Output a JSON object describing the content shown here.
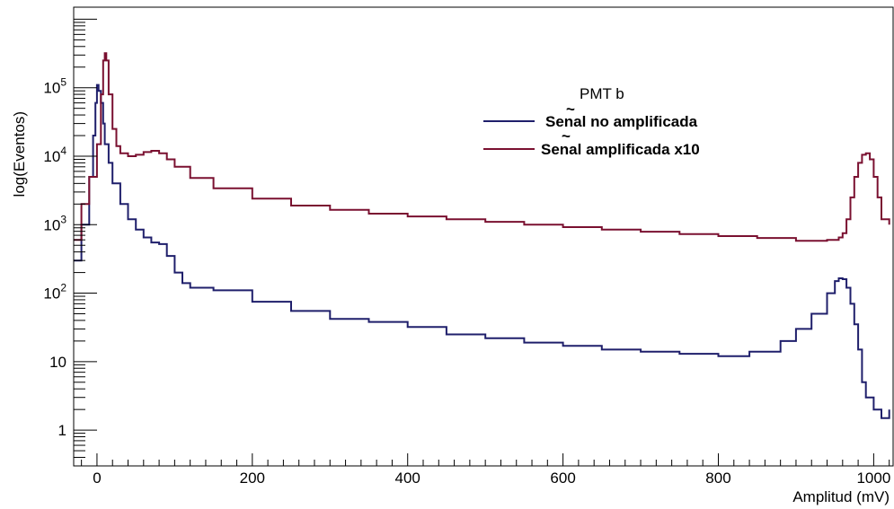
{
  "chart_data": {
    "type": "line",
    "title": "",
    "xlabel": "Amplitud (mV)",
    "ylabel": "log(Eventos)",
    "xlim": [
      -30,
      1025
    ],
    "ylim": [
      0.3,
      1500000
    ],
    "yscale": "log",
    "grid": false,
    "legend": {
      "title": "PMT b",
      "position": "top-right",
      "entries": [
        "Senal no amplificada",
        "Senal amplificada x10"
      ]
    },
    "x_ticks": [
      0,
      200,
      400,
      600,
      800,
      1000
    ],
    "x_tick_labels": [
      "0",
      "200",
      "400",
      "600",
      "800",
      "1000"
    ],
    "y_ticks": [
      1,
      10,
      100,
      1000,
      10000,
      100000
    ],
    "y_tick_labels": [
      "1",
      "10",
      "10^2",
      "10^3",
      "10^4",
      "10^5"
    ],
    "series": [
      {
        "name": "Senal no amplificada",
        "color": "#1f1f6b",
        "x": [
          -30,
          -20,
          -10,
          -5,
          -2,
          0,
          2,
          5,
          8,
          10,
          15,
          20,
          30,
          40,
          50,
          60,
          70,
          80,
          90,
          100,
          110,
          120,
          150,
          200,
          250,
          300,
          350,
          400,
          450,
          500,
          550,
          600,
          650,
          700,
          750,
          800,
          840,
          880,
          900,
          920,
          940,
          950,
          955,
          960,
          965,
          970,
          975,
          980,
          985,
          990,
          1000,
          1010,
          1020
        ],
        "y": [
          300,
          1000,
          5000,
          20000,
          60000,
          110000,
          90000,
          60000,
          30000,
          15000,
          8000,
          4000,
          2000,
          1200,
          850,
          650,
          550,
          520,
          350,
          200,
          140,
          120,
          110,
          75,
          55,
          42,
          38,
          32,
          25,
          22,
          19,
          17,
          15,
          14,
          13,
          12,
          14,
          20,
          30,
          50,
          100,
          150,
          165,
          160,
          120,
          70,
          35,
          15,
          5,
          3,
          2,
          1.5,
          2
        ]
      },
      {
        "name": "Senal amplificada x10",
        "color": "#7a1030",
        "x": [
          -30,
          -20,
          -10,
          0,
          5,
          8,
          10,
          12,
          15,
          20,
          25,
          30,
          40,
          50,
          60,
          70,
          80,
          90,
          100,
          120,
          150,
          200,
          250,
          300,
          350,
          400,
          450,
          500,
          550,
          600,
          650,
          700,
          750,
          800,
          850,
          900,
          940,
          955,
          960,
          965,
          970,
          975,
          980,
          985,
          990,
          995,
          1000,
          1005,
          1010,
          1020
        ],
        "y": [
          600,
          2000,
          5000,
          15000,
          80000,
          250000,
          320000,
          250000,
          80000,
          25000,
          14000,
          11000,
          10000,
          10500,
          11500,
          12000,
          11000,
          9000,
          7000,
          4800,
          3400,
          2400,
          1900,
          1650,
          1450,
          1320,
          1200,
          1100,
          1000,
          920,
          850,
          790,
          730,
          680,
          640,
          580,
          600,
          650,
          750,
          1200,
          2500,
          5000,
          8000,
          10500,
          11000,
          9000,
          5000,
          2500,
          1200,
          1000
        ]
      }
    ]
  }
}
